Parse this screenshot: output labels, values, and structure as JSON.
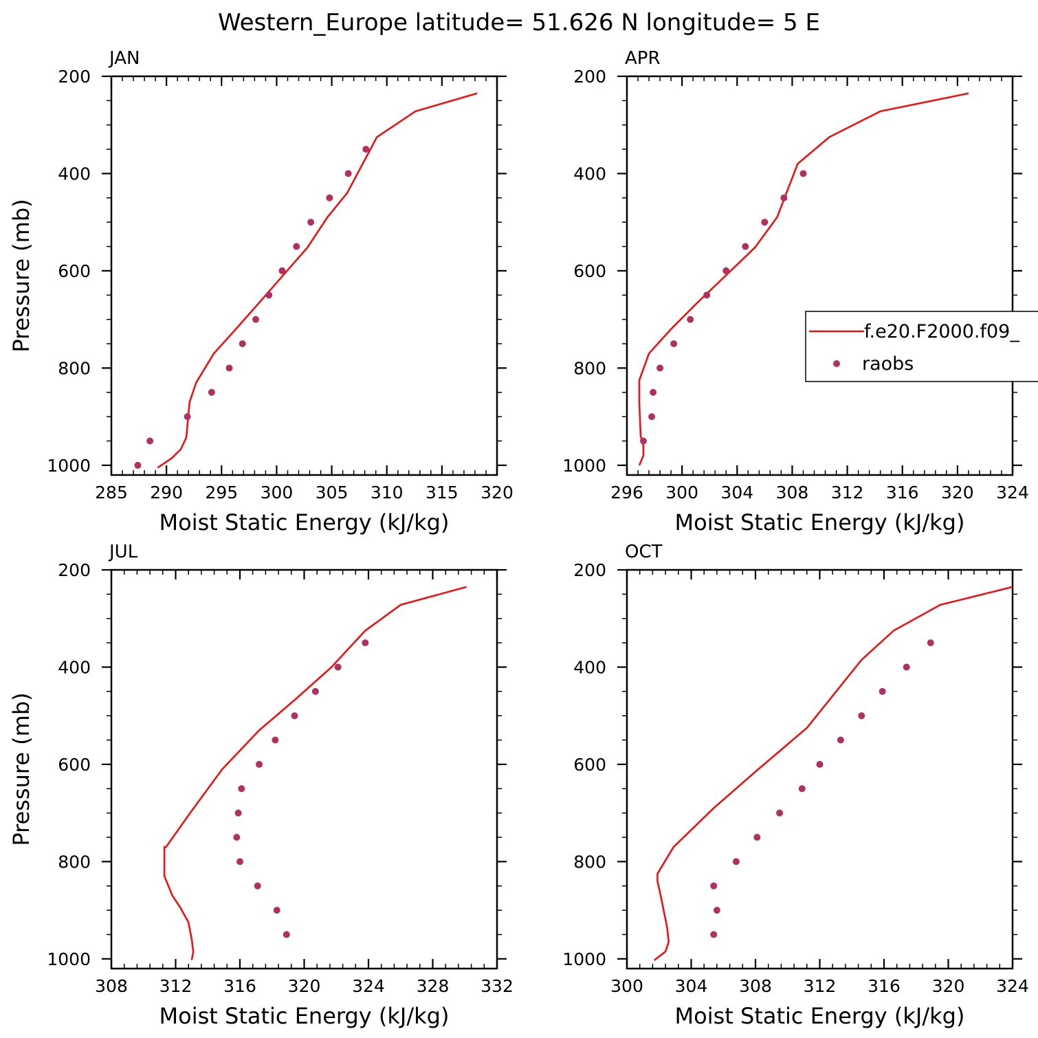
{
  "figure_title": "Western_Europe  latitude= 51.626 N longitude= 5 E",
  "colors": {
    "model_line": "#ee1111",
    "obs_marker": "#b0305f",
    "axes": "#000000"
  },
  "legend": {
    "model_label": "f.e20.F2000.f09_",
    "obs_label": "raobs"
  },
  "chart_data": [
    {
      "type": "line",
      "title": "JAN",
      "xlabel": "Moist Static Energy (kJ/kg)",
      "ylabel": "Pressure (mb)",
      "xlim": [
        285,
        320
      ],
      "xticks": [
        285,
        290,
        295,
        300,
        305,
        310,
        315,
        320
      ],
      "ylim": [
        1020,
        200
      ],
      "yticks": [
        200,
        400,
        600,
        800,
        1000
      ],
      "grid": false,
      "series": [
        {
          "kind": "line",
          "x": [
            289.2,
            290.5,
            291.3,
            291.8,
            292.1,
            292.7,
            294.3,
            296.3,
            298.4,
            300.6,
            302.8,
            304.6,
            306.4,
            309.1,
            312.6,
            318.2
          ],
          "y": [
            1005,
            985,
            967,
            943,
            870,
            830,
            770,
            720,
            666,
            609,
            552,
            490,
            440,
            325,
            272,
            235
          ]
        },
        {
          "kind": "scatter",
          "x": [
            287.4,
            288.5,
            291.9,
            294.1,
            295.7,
            296.9,
            298.1,
            299.3,
            300.5,
            301.8,
            303.1,
            304.8,
            306.5,
            308.1
          ],
          "y": [
            1000,
            950,
            900,
            850,
            800,
            750,
            700,
            650,
            600,
            550,
            500,
            450,
            400,
            350
          ]
        }
      ]
    },
    {
      "type": "line",
      "title": "APR",
      "xlabel": "Moist Static Energy (kJ/kg)",
      "ylabel": "",
      "xlim": [
        296,
        324
      ],
      "xticks": [
        296,
        300,
        304,
        308,
        312,
        316,
        320,
        324
      ],
      "ylim": [
        1020,
        200
      ],
      "yticks": [
        200,
        400,
        600,
        800,
        1000
      ],
      "grid": false,
      "series": [
        {
          "kind": "line",
          "x": [
            296.9,
            297.2,
            297.2,
            297.0,
            296.9,
            296.9,
            297.6,
            299.2,
            301.1,
            303.2,
            305.3,
            306.9,
            308.4,
            310.7,
            314.4,
            320.8
          ],
          "y": [
            1000,
            980,
            960,
            940,
            870,
            825,
            770,
            720,
            666,
            609,
            552,
            490,
            380,
            325,
            272,
            235
          ]
        },
        {
          "kind": "scatter",
          "x": [
            297.2,
            297.8,
            297.9,
            298.4,
            299.4,
            300.6,
            301.8,
            303.2,
            304.6,
            306.0,
            307.4,
            308.8
          ],
          "y": [
            950,
            900,
            850,
            800,
            750,
            700,
            650,
            600,
            550,
            500,
            450,
            400
          ]
        }
      ]
    },
    {
      "type": "line",
      "title": "JUL",
      "xlabel": "Moist Static Energy (kJ/kg)",
      "ylabel": "Pressure (mb)",
      "xlim": [
        308,
        332
      ],
      "xticks": [
        308,
        312,
        316,
        320,
        324,
        328,
        332
      ],
      "ylim": [
        1020,
        200
      ],
      "yticks": [
        200,
        400,
        600,
        800,
        1000
      ],
      "grid": false,
      "series": [
        {
          "kind": "line",
          "x": [
            313.0,
            313.1,
            313.0,
            312.8,
            312.3,
            311.8,
            311.3,
            311.3,
            311.4,
            312.9,
            314.9,
            317.2,
            319.5,
            321.7,
            323.8,
            326.0,
            330.1
          ],
          "y": [
            1002,
            985,
            960,
            925,
            895,
            870,
            830,
            770,
            770,
            700,
            610,
            530,
            465,
            400,
            325,
            272,
            235
          ]
        },
        {
          "kind": "scatter",
          "x": [
            318.9,
            318.3,
            317.1,
            316.0,
            315.8,
            315.9,
            316.1,
            317.2,
            318.2,
            319.4,
            320.7,
            322.1,
            323.8
          ],
          "y": [
            950,
            900,
            850,
            800,
            750,
            700,
            650,
            600,
            550,
            500,
            450,
            400,
            350
          ]
        }
      ]
    },
    {
      "type": "line",
      "title": "OCT",
      "xlabel": "Moist Static Energy (kJ/kg)",
      "ylabel": "",
      "xlim": [
        300,
        324
      ],
      "xticks": [
        300,
        304,
        308,
        312,
        316,
        320,
        324
      ],
      "ylim": [
        1020,
        200
      ],
      "yticks": [
        200,
        400,
        600,
        800,
        1000
      ],
      "grid": false,
      "series": [
        {
          "kind": "line",
          "x": [
            301.7,
            302.4,
            302.6,
            302.5,
            302.1,
            301.9,
            301.9,
            302.9,
            305.4,
            308.0,
            311.2,
            314.6,
            316.6,
            319.5,
            324.0
          ],
          "y": [
            1003,
            985,
            965,
            935,
            870,
            840,
            825,
            770,
            690,
            615,
            525,
            385,
            325,
            272,
            235
          ]
        },
        {
          "kind": "scatter",
          "x": [
            305.4,
            305.6,
            305.4,
            306.8,
            308.1,
            309.5,
            310.9,
            312.0,
            313.3,
            314.6,
            315.9,
            317.4,
            318.9
          ],
          "y": [
            950,
            900,
            850,
            800,
            750,
            700,
            650,
            600,
            550,
            500,
            450,
            400,
            350
          ]
        }
      ]
    }
  ]
}
